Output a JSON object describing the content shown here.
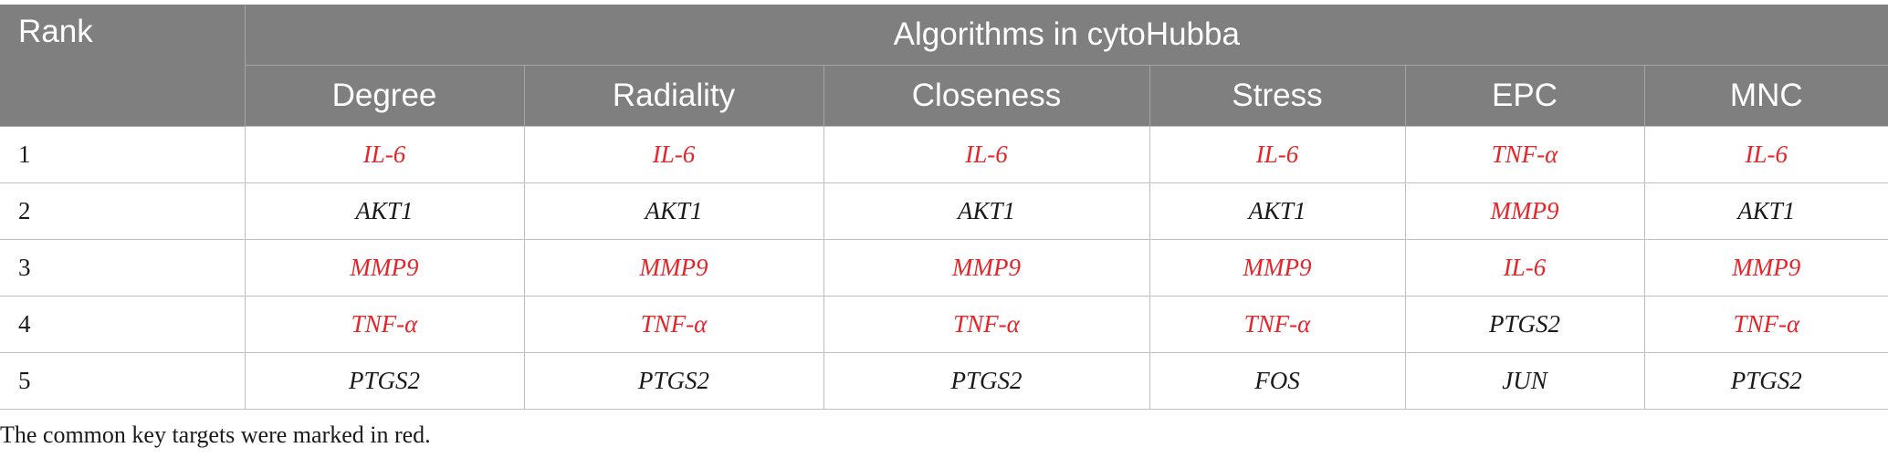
{
  "table": {
    "rank_header": "Rank",
    "group_header": "Algorithms in cytoHubba",
    "algorithms": [
      "Degree",
      "Radiality",
      "Closeness",
      "Stress",
      "EPC",
      "MNC"
    ],
    "colors": {
      "header_bg": "#7f7f7f",
      "highlight_red": "#e5252a"
    },
    "rows": [
      {
        "rank": "1",
        "cells": [
          {
            "text": "IL-6",
            "red": true
          },
          {
            "text": "IL-6",
            "red": true
          },
          {
            "text": "IL-6",
            "red": true
          },
          {
            "text": "IL-6",
            "red": true
          },
          {
            "text": "TNF-α",
            "red": true
          },
          {
            "text": "IL-6",
            "red": true
          }
        ]
      },
      {
        "rank": "2",
        "cells": [
          {
            "text": "AKT1",
            "red": false
          },
          {
            "text": "AKT1",
            "red": false
          },
          {
            "text": "AKT1",
            "red": false
          },
          {
            "text": "AKT1",
            "red": false
          },
          {
            "text": "MMP9",
            "red": true
          },
          {
            "text": "AKT1",
            "red": false
          }
        ]
      },
      {
        "rank": "3",
        "cells": [
          {
            "text": "MMP9",
            "red": true
          },
          {
            "text": "MMP9",
            "red": true
          },
          {
            "text": "MMP9",
            "red": true
          },
          {
            "text": "MMP9",
            "red": true
          },
          {
            "text": "IL-6",
            "red": true
          },
          {
            "text": "MMP9",
            "red": true
          }
        ]
      },
      {
        "rank": "4",
        "cells": [
          {
            "text": "TNF-α",
            "red": true
          },
          {
            "text": "TNF-α",
            "red": true
          },
          {
            "text": "TNF-α",
            "red": true
          },
          {
            "text": "TNF-α",
            "red": true
          },
          {
            "text": "PTGS2",
            "red": false
          },
          {
            "text": "TNF-α",
            "red": true
          }
        ]
      },
      {
        "rank": "5",
        "cells": [
          {
            "text": "PTGS2",
            "red": false
          },
          {
            "text": "PTGS2",
            "red": false
          },
          {
            "text": "PTGS2",
            "red": false
          },
          {
            "text": "FOS",
            "red": false
          },
          {
            "text": "JUN",
            "red": false
          },
          {
            "text": "PTGS2",
            "red": false
          }
        ]
      }
    ]
  },
  "footnote": "The common key targets were marked in red."
}
